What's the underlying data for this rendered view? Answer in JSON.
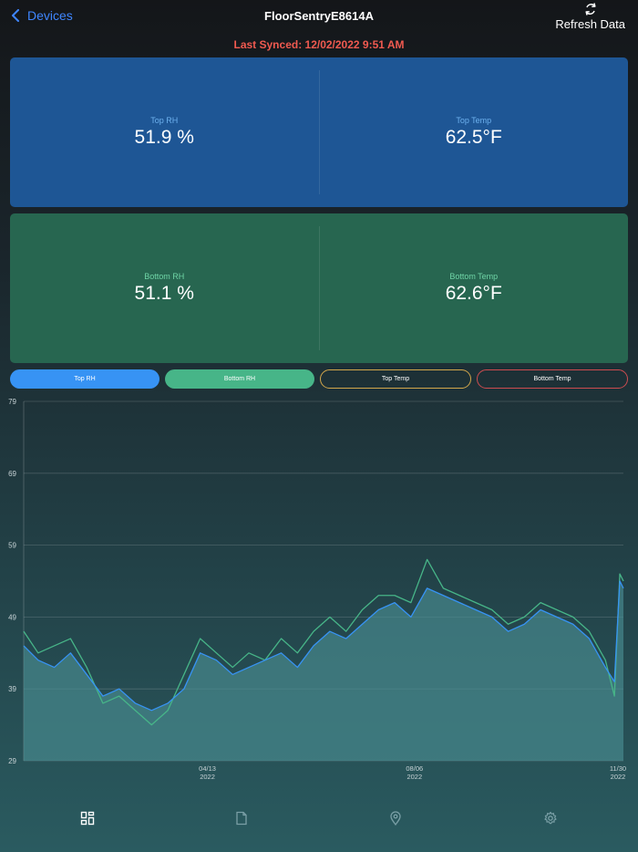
{
  "nav": {
    "back_label": "Devices",
    "title": "FloorSentryE8614A",
    "refresh_label": "Refresh Data"
  },
  "sync": {
    "text": "Last Synced: 12/02/2022 9:51 AM"
  },
  "cards": {
    "top": {
      "rh_label": "Top RH",
      "rh_value": "51.9 %",
      "temp_label": "Top Temp",
      "temp_value": "62.5°F"
    },
    "bottom": {
      "rh_label": "Bottom RH",
      "rh_value": "51.1 %",
      "temp_label": "Bottom Temp",
      "temp_value": "62.6°F"
    }
  },
  "toggles": {
    "top_rh": "Top RH",
    "bottom_rh": "Bottom RH",
    "top_temp": "Top Temp",
    "bottom_temp": "Bottom Temp"
  },
  "colors": {
    "top_rh": "#3793f4",
    "bottom_rh": "#47b588",
    "top_temp": "#d2a64b",
    "bottom_temp": "#cd4c50",
    "area_fill": "#4a8e92"
  },
  "tabs": [
    {
      "icon": "dashboard-grid-icon",
      "active": true
    },
    {
      "icon": "document-icon",
      "active": false
    },
    {
      "icon": "location-pin-icon",
      "active": false
    },
    {
      "icon": "gear-icon",
      "active": false
    }
  ],
  "chart_data": {
    "type": "area",
    "title": "",
    "xlabel": "",
    "ylabel": "",
    "ylim": [
      29,
      79
    ],
    "y_ticks": [
      79,
      69,
      59,
      49,
      39,
      29
    ],
    "xlim": [
      "2022-01-01",
      "2022-11-30"
    ],
    "x_ticks": [
      {
        "date": "2022-04-13",
        "line1": "04/13",
        "line2": "2022"
      },
      {
        "date": "2022-08-06",
        "line1": "08/06",
        "line2": "2022"
      },
      {
        "date": "2022-11-30",
        "line1": "11/30",
        "line2": "2022"
      }
    ],
    "grid": true,
    "series": [
      {
        "name": "Top RH",
        "x": [
          "2022-01-01",
          "2022-01-09",
          "2022-01-18",
          "2022-01-27",
          "2022-02-05",
          "2022-02-14",
          "2022-02-23",
          "2022-03-04",
          "2022-03-13",
          "2022-03-22",
          "2022-03-31",
          "2022-04-09",
          "2022-04-18",
          "2022-04-27",
          "2022-05-06",
          "2022-05-15",
          "2022-05-24",
          "2022-06-02",
          "2022-06-11",
          "2022-06-20",
          "2022-06-29",
          "2022-07-08",
          "2022-07-17",
          "2022-07-26",
          "2022-08-04",
          "2022-08-13",
          "2022-08-22",
          "2022-08-31",
          "2022-09-09",
          "2022-09-18",
          "2022-09-27",
          "2022-10-06",
          "2022-10-15",
          "2022-10-24",
          "2022-11-02",
          "2022-11-11",
          "2022-11-20",
          "2022-11-25",
          "2022-11-28",
          "2022-11-30"
        ],
        "values": [
          45,
          43,
          42,
          44,
          41,
          38,
          39,
          37,
          36,
          37,
          39,
          44,
          43,
          41,
          42,
          43,
          44,
          42,
          45,
          47,
          46,
          48,
          50,
          51,
          49,
          53,
          52,
          51,
          50,
          49,
          47,
          48,
          50,
          49,
          48,
          46,
          42,
          40,
          54,
          53
        ]
      },
      {
        "name": "Bottom RH",
        "x": [
          "2022-01-01",
          "2022-01-09",
          "2022-01-18",
          "2022-01-27",
          "2022-02-05",
          "2022-02-14",
          "2022-02-23",
          "2022-03-04",
          "2022-03-13",
          "2022-03-22",
          "2022-03-31",
          "2022-04-09",
          "2022-04-18",
          "2022-04-27",
          "2022-05-06",
          "2022-05-15",
          "2022-05-24",
          "2022-06-02",
          "2022-06-11",
          "2022-06-20",
          "2022-06-29",
          "2022-07-08",
          "2022-07-17",
          "2022-07-26",
          "2022-08-04",
          "2022-08-13",
          "2022-08-22",
          "2022-08-31",
          "2022-09-09",
          "2022-09-18",
          "2022-09-27",
          "2022-10-06",
          "2022-10-15",
          "2022-10-24",
          "2022-11-02",
          "2022-11-11",
          "2022-11-20",
          "2022-11-25",
          "2022-11-28",
          "2022-11-30"
        ],
        "values": [
          47,
          44,
          45,
          46,
          42,
          37,
          38,
          36,
          34,
          36,
          41,
          46,
          44,
          42,
          44,
          43,
          46,
          44,
          47,
          49,
          47,
          50,
          52,
          52,
          51,
          57,
          53,
          52,
          51,
          50,
          48,
          49,
          51,
          50,
          49,
          47,
          43,
          38,
          55,
          54
        ]
      }
    ]
  }
}
